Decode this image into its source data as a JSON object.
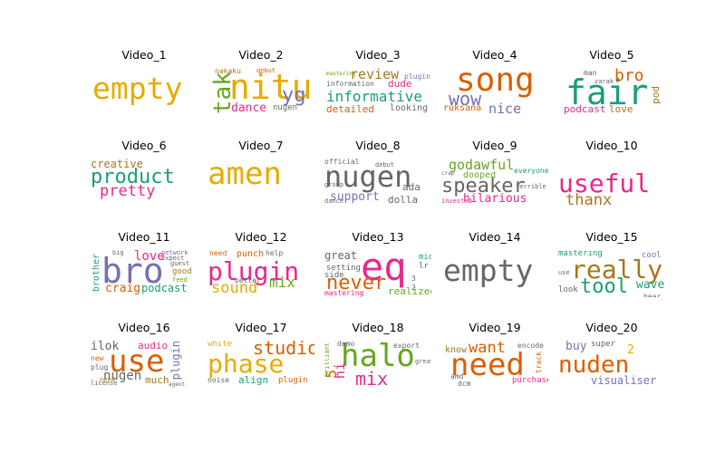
{
  "palette": {
    "green": "#1b9e77",
    "orange": "#d95f02",
    "purple": "#7570b3",
    "pink": "#e7298a",
    "lime": "#66a61e",
    "gold": "#e6ab02",
    "brown": "#a6761d",
    "gray": "#666666"
  },
  "panels": [
    {
      "title": "Video_1",
      "words": [
        "empty"
      ]
    },
    {
      "title": "Video_2",
      "words": [
        "nitu",
        "tak",
        "yg",
        "dance",
        "nakaku",
        "nugen",
        "debut"
      ]
    },
    {
      "title": "Video_3",
      "words": [
        "informative",
        "review",
        "dude",
        "detailed",
        "looking",
        "information",
        "plugin",
        "mastering"
      ]
    },
    {
      "title": "Video_4",
      "words": [
        "song",
        "wow",
        "nice",
        "ruksana"
      ]
    },
    {
      "title": "Video_5",
      "words": [
        "fair",
        "bro",
        "man",
        "podcast",
        "love",
        "pod",
        "zarak"
      ]
    },
    {
      "title": "Video_6",
      "words": [
        "product",
        "creative",
        "pretty"
      ]
    },
    {
      "title": "Video_7",
      "words": [
        "amen"
      ]
    },
    {
      "title": "Video_8",
      "words": [
        "nugen",
        "support",
        "ada",
        "dolla",
        "official",
        "group",
        "dance",
        "debut"
      ]
    },
    {
      "title": "Video_9",
      "words": [
        "speaker",
        "godawful",
        "hilarious",
        "dooped",
        "everyone",
        "terrible",
        "invested",
        "crap"
      ]
    },
    {
      "title": "Video_10",
      "words": [
        "useful",
        "thanx"
      ]
    },
    {
      "title": "Video_11",
      "words": [
        "bro",
        "love",
        "craig",
        "podcast",
        "brother",
        "good",
        "guest",
        "network",
        "big",
        "expect",
        "feed"
      ]
    },
    {
      "title": "Video_12",
      "words": [
        "plugin",
        "sound",
        "mix",
        "punch",
        "need",
        "help",
        "better"
      ]
    },
    {
      "title": "Video_13",
      "words": [
        "eq",
        "never",
        "great",
        "setting",
        "side",
        "mastering",
        "realized",
        "mid",
        "lr",
        "3",
        "2"
      ]
    },
    {
      "title": "Video_14",
      "words": [
        "empty"
      ]
    },
    {
      "title": "Video_15",
      "words": [
        "really",
        "tool",
        "mastering",
        "cool",
        "wave",
        "look",
        "hear",
        "use"
      ]
    },
    {
      "title": "Video_16",
      "words": [
        "use",
        "ilok",
        "audio",
        "plugin",
        "nugen",
        "new",
        "much",
        "plug",
        "license",
        "need",
        "agent"
      ]
    },
    {
      "title": "Video_17",
      "words": [
        "phase",
        "studio",
        "white",
        "noise",
        "align",
        "plugin"
      ]
    },
    {
      "title": "Video_18",
      "words": [
        "halo",
        "mix",
        "hi",
        "5",
        "demo",
        "export",
        "brilliant",
        "great"
      ]
    },
    {
      "title": "Video_19",
      "words": [
        "need",
        "want",
        "know",
        "encode",
        "purchase",
        "amd",
        "dcm",
        "track"
      ]
    },
    {
      "title": "Video_20",
      "words": [
        "nuden",
        "buy",
        "super",
        "visualiser",
        "2"
      ]
    }
  ]
}
